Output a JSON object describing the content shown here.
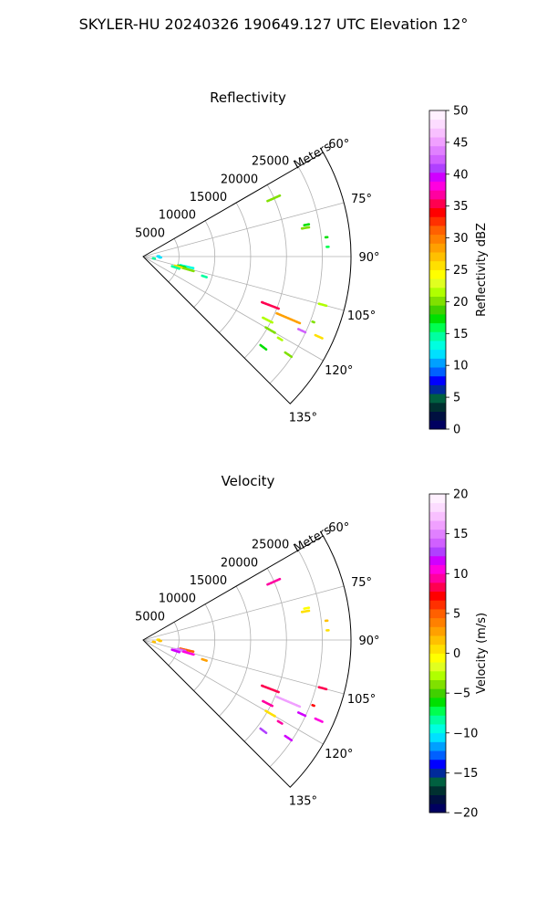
{
  "figure": {
    "title": "SKYLER-HU  20240326  190649.127 UTC Elevation 12°"
  },
  "chart_data": [
    {
      "type": "polar-sector",
      "title": "Reflectivity",
      "radial_label": "Meters",
      "radial_ticks": [
        "5000",
        "10000",
        "15000",
        "20000",
        "25000"
      ],
      "radial_tick_values": [
        5000,
        10000,
        15000,
        20000,
        25000
      ],
      "rmax": 29000,
      "azimuth_range": [
        60,
        135
      ],
      "azimuth_ticks": [
        "60°",
        "75°",
        "90°",
        "105°",
        "120°",
        "135°"
      ],
      "azimuth_tick_values": [
        60,
        75,
        90,
        105,
        120,
        135
      ],
      "colorbar": {
        "label": "Reflectivity dBZ",
        "range": [
          0,
          50
        ],
        "tick_values": [
          0,
          5,
          10,
          15,
          20,
          25,
          30,
          35,
          40,
          45,
          50
        ],
        "tick_labels": [
          "0",
          "5",
          "10",
          "15",
          "20",
          "25",
          "30",
          "35",
          "40",
          "45",
          "50"
        ]
      },
      "echoes": [
        {
          "az": 66,
          "r": 20000,
          "len": 2000,
          "value": 20
        },
        {
          "az": 79,
          "r": 23300,
          "len": 800,
          "value": 18
        },
        {
          "az": 80,
          "r": 23000,
          "len": 1000,
          "value": 20
        },
        {
          "az": 84,
          "r": 25800,
          "len": 400,
          "value": 17
        },
        {
          "az": 87,
          "r": 25800,
          "len": 300,
          "value": 16
        },
        {
          "az": 89,
          "r": 2200,
          "len": 400,
          "value": 12
        },
        {
          "az": 93,
          "r": 2400,
          "len": 300,
          "value": 12
        },
        {
          "az": 100,
          "r": 1600,
          "len": 400,
          "value": 14
        },
        {
          "az": 103,
          "r": 6300,
          "len": 2000,
          "value": 13
        },
        {
          "az": 104.5,
          "r": 5600,
          "len": 1200,
          "value": 18
        },
        {
          "az": 106,
          "r": 5500,
          "len": 1800,
          "value": 26
        },
        {
          "az": 106,
          "r": 6600,
          "len": 1500,
          "value": 20
        },
        {
          "az": 108,
          "r": 9000,
          "len": 700,
          "value": 15
        },
        {
          "az": 108.5,
          "r": 4800,
          "len": 1100,
          "value": 14
        },
        {
          "az": 105,
          "r": 26000,
          "len": 1200,
          "value": 22
        },
        {
          "az": 111,
          "r": 19000,
          "len": 2500,
          "value": 36
        },
        {
          "az": 111,
          "r": 25500,
          "len": 400,
          "value": 20
        },
        {
          "az": 113,
          "r": 22000,
          "len": 3500,
          "value": 28
        },
        {
          "az": 114.5,
          "r": 27000,
          "len": 1200,
          "value": 26
        },
        {
          "az": 115,
          "r": 24500,
          "len": 1200,
          "value": 43
        },
        {
          "az": 117,
          "r": 19500,
          "len": 1500,
          "value": 21
        },
        {
          "az": 120,
          "r": 20500,
          "len": 1500,
          "value": 20
        },
        {
          "az": 121,
          "r": 22300,
          "len": 700,
          "value": 22
        },
        {
          "az": 124,
          "r": 24500,
          "len": 1200,
          "value": 20
        },
        {
          "az": 127,
          "r": 21000,
          "len": 1000,
          "value": 18
        }
      ]
    },
    {
      "type": "polar-sector",
      "title": "Velocity",
      "radial_label": "Meters",
      "radial_ticks": [
        "5000",
        "10000",
        "15000",
        "20000",
        "25000"
      ],
      "radial_tick_values": [
        5000,
        10000,
        15000,
        20000,
        25000
      ],
      "rmax": 29000,
      "azimuth_range": [
        60,
        135
      ],
      "azimuth_ticks": [
        "60°",
        "75°",
        "90°",
        "105°",
        "120°",
        "135°"
      ],
      "azimuth_tick_values": [
        60,
        75,
        90,
        105,
        120,
        135
      ],
      "colorbar": {
        "label": "Velocity (m/s)",
        "range": [
          -20,
          20
        ],
        "tick_values": [
          -20,
          -15,
          -10,
          -5,
          0,
          5,
          10,
          15,
          20
        ],
        "tick_labels": [
          "−20",
          "−15",
          "−10",
          "−5",
          "0",
          "5",
          "10",
          "15",
          "20"
        ]
      },
      "echoes": [
        {
          "az": 66,
          "r": 20000,
          "len": 2000,
          "value": 9
        },
        {
          "az": 79,
          "r": 23300,
          "len": 800,
          "value": -1
        },
        {
          "az": 80,
          "r": 23000,
          "len": 1000,
          "value": 1
        },
        {
          "az": 84,
          "r": 25800,
          "len": 400,
          "value": 2
        },
        {
          "az": 87,
          "r": 25800,
          "len": 300,
          "value": 1
        },
        {
          "az": 89,
          "r": 2200,
          "len": 400,
          "value": 1
        },
        {
          "az": 93,
          "r": 2400,
          "len": 300,
          "value": 2
        },
        {
          "az": 100,
          "r": 1600,
          "len": 400,
          "value": 2
        },
        {
          "az": 103,
          "r": 6300,
          "len": 2000,
          "value": 5
        },
        {
          "az": 104.5,
          "r": 5600,
          "len": 1200,
          "value": 14
        },
        {
          "az": 106,
          "r": 5500,
          "len": 1800,
          "value": 15
        },
        {
          "az": 106,
          "r": 6600,
          "len": 1500,
          "value": 10
        },
        {
          "az": 108,
          "r": 9000,
          "len": 700,
          "value": 3
        },
        {
          "az": 108.5,
          "r": 4800,
          "len": 1100,
          "value": 12
        },
        {
          "az": 105,
          "r": 26000,
          "len": 1200,
          "value": 8
        },
        {
          "az": 111,
          "r": 19000,
          "len": 2500,
          "value": 8
        },
        {
          "az": 111,
          "r": 25500,
          "len": 400,
          "value": 7
        },
        {
          "az": 113,
          "r": 22000,
          "len": 3500,
          "value": 16
        },
        {
          "az": 114.5,
          "r": 27000,
          "len": 1200,
          "value": 10
        },
        {
          "az": 115,
          "r": 24500,
          "len": 1200,
          "value": 12
        },
        {
          "az": 117,
          "r": 19500,
          "len": 1500,
          "value": 9
        },
        {
          "az": 120,
          "r": 20500,
          "len": 1500,
          "value": 1
        },
        {
          "az": 121,
          "r": 22300,
          "len": 700,
          "value": 9
        },
        {
          "az": 124,
          "r": 24500,
          "len": 1200,
          "value": 12
        },
        {
          "az": 127,
          "r": 21000,
          "len": 1000,
          "value": 13
        }
      ]
    }
  ]
}
